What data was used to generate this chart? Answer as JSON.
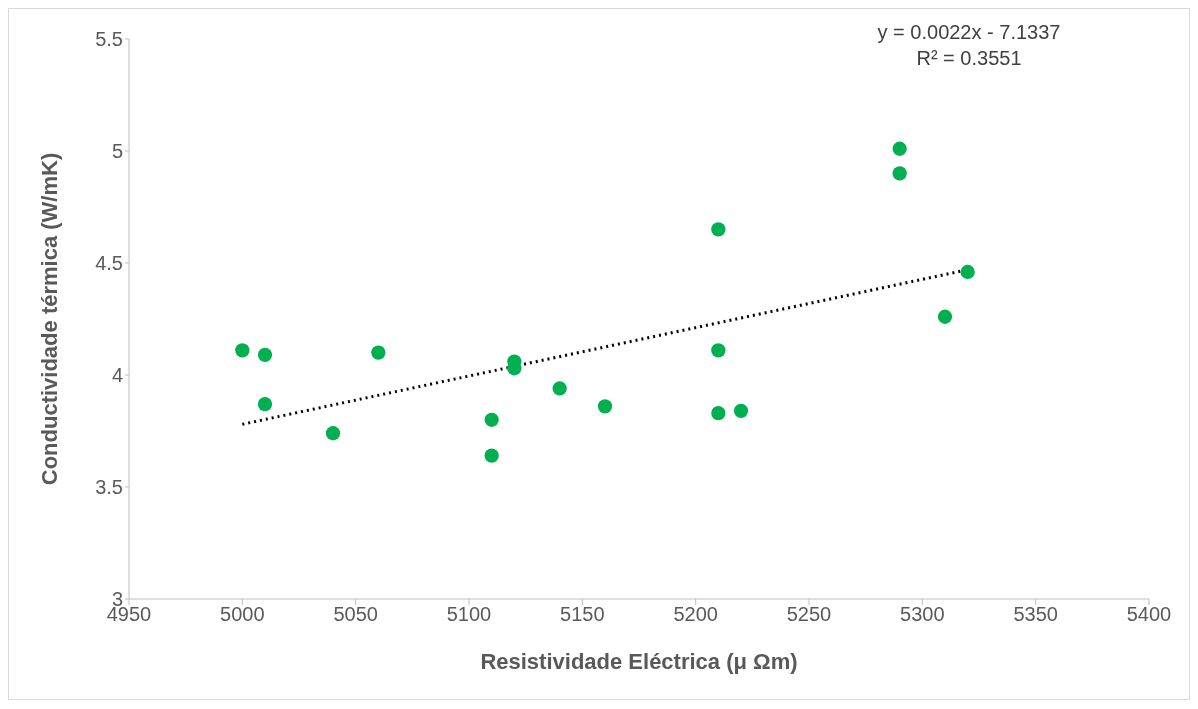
{
  "chart_data": {
    "type": "scatter",
    "xlabel": "Resistividade Eléctrica (μ Ωm)",
    "ylabel": "Conductividade térmica (W/mK)",
    "annotations": [
      "y = 0.0022x - 7.1337",
      "R² = 0.3551"
    ],
    "xlim": [
      4950,
      5400
    ],
    "xticks": [
      4950,
      5000,
      5050,
      5100,
      5150,
      5200,
      5250,
      5300,
      5350,
      5400
    ],
    "ylim": [
      3,
      5.5
    ],
    "yticks": [
      3,
      3.5,
      4,
      4.5,
      5,
      5.5
    ],
    "grid": false,
    "legend": false,
    "series": [
      {
        "type": "line",
        "color": "#000000",
        "line_style": "dotted",
        "marker": "none",
        "x": [
          5000,
          5320
        ],
        "values": [
          3.78,
          4.47
        ]
      },
      {
        "type": "scatter",
        "color": "#00b050",
        "marker": "circle",
        "x": [
          5000,
          5010,
          5010,
          5040,
          5060,
          5110,
          5110,
          5120,
          5120,
          5140,
          5160,
          5210,
          5210,
          5210,
          5220,
          5290,
          5290,
          5310,
          5320
        ],
        "values": [
          4.11,
          4.09,
          3.87,
          3.74,
          4.1,
          3.8,
          3.64,
          4.06,
          4.03,
          3.94,
          3.86,
          4.65,
          4.11,
          3.83,
          3.84,
          5.01,
          4.9,
          4.26,
          4.46
        ]
      }
    ]
  }
}
